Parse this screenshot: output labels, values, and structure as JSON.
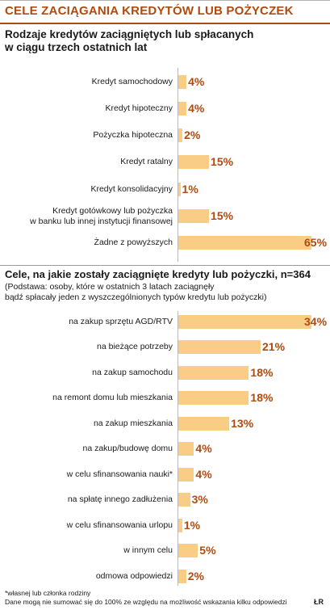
{
  "title": "CELE ZACIĄGANIA KREDYTÓW LUB POŻYCZEK",
  "footnote": {
    "line1": "*własnej lub członka rodziny",
    "line2": "Dane mogą nie sumować się do 100% ze względu na możliwość wskazania kilku odpowiedzi"
  },
  "logo": "ŁR",
  "colors": {
    "accent": "#b04a0e",
    "bar": "#f9cd85",
    "axis": "#b9b9b9"
  },
  "chart_data": [
    {
      "type": "bar",
      "orientation": "horizontal",
      "title_lines": [
        "Rodzaje kredytów zaciągniętych lub spłacanych",
        "w ciągu trzech ostatnich lat"
      ],
      "categories": [
        [
          "Kredyt samochodowy"
        ],
        [
          "Kredyt hipoteczny"
        ],
        [
          "Pożyczka hipoteczna"
        ],
        [
          "Kredyt ratalny"
        ],
        [
          "Kredyt konsolidacyjny"
        ],
        [
          "Kredyt gotówkowy lub pożyczka",
          "w banku lub innej instytucji finansowej"
        ],
        [
          "Żadne z powyższych"
        ]
      ],
      "values": [
        4,
        4,
        2,
        15,
        1,
        15,
        65
      ],
      "value_labels": [
        "4%",
        "4%",
        "2%",
        "15%",
        "1%",
        "15%",
        "65%"
      ],
      "unit": "%",
      "xlim": [
        0,
        67
      ],
      "grid": false
    },
    {
      "type": "bar",
      "orientation": "horizontal",
      "title_lines": [
        "Cele, na jakie zostały zaciągnięte kredyty lub pożyczki, n=364"
      ],
      "note_lines": [
        "(Podstawa: osoby, które w ostatnich 3 latach zaciągnęły",
        "bądź spłacały jeden z wyszczególnionych typów kredytu lub pożyczki)"
      ],
      "categories": [
        [
          "na zakup sprzętu AGD/RTV"
        ],
        [
          "na bieżące potrzeby"
        ],
        [
          "na zakup samochodu"
        ],
        [
          "na remont domu lub mieszkania"
        ],
        [
          "na zakup mieszkania"
        ],
        [
          "na zakup/budowę domu"
        ],
        [
          "w celu sfinansowania nauki*"
        ],
        [
          "na spłatę innego zadłużenia"
        ],
        [
          "w celu sfinansowania urlopu"
        ],
        [
          "w innym celu"
        ],
        [
          "odmowa odpowiedzi"
        ]
      ],
      "values": [
        34,
        21,
        18,
        18,
        13,
        4,
        4,
        3,
        1,
        5,
        2
      ],
      "value_labels": [
        "34%",
        "21%",
        "18%",
        "18%",
        "13%",
        "4%",
        "4%",
        "3%",
        "1%",
        "5%",
        "2%"
      ],
      "unit": "%",
      "xlim": [
        0,
        35
      ],
      "grid": false
    }
  ]
}
